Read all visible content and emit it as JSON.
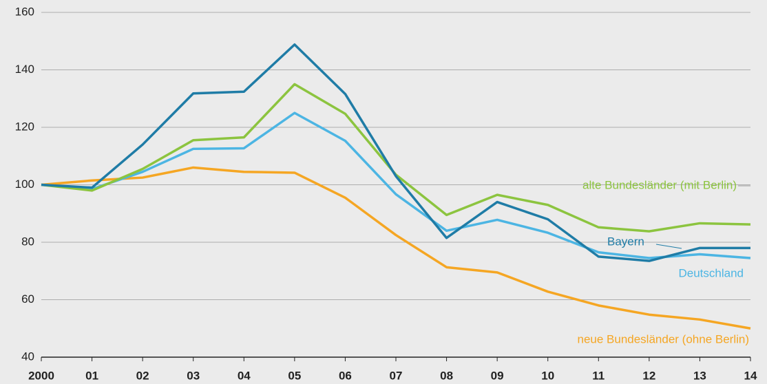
{
  "chart_data": {
    "type": "line",
    "categories": [
      "2000",
      "01",
      "02",
      "03",
      "04",
      "05",
      "06",
      "07",
      "08",
      "09",
      "10",
      "11",
      "12",
      "13",
      "14"
    ],
    "series": [
      {
        "name": "neue Bundesländer (ohne Berlin)",
        "color": "#f5a623",
        "values": [
          100,
          101.5,
          102.5,
          106,
          104.5,
          104.2,
          95.5,
          82.5,
          71.3,
          69.5,
          62.8,
          58,
          54.8,
          53.1,
          50
        ]
      },
      {
        "name": "Deutschland",
        "color": "#4cb5e3",
        "values": [
          100,
          98.5,
          104.5,
          112.5,
          112.7,
          125,
          115.3,
          96.7,
          84,
          87.8,
          83.3,
          76.5,
          74.5,
          75.8,
          74.5
        ]
      },
      {
        "name": "alte Bundesländer (mit Berlin)",
        "color": "#8cc43f",
        "values": [
          100,
          98,
          105.5,
          115.5,
          116.5,
          135,
          124.7,
          103.5,
          89.5,
          96.5,
          93,
          85.2,
          83.8,
          86.6,
          86.2
        ]
      },
      {
        "name": "Bayern",
        "color": "#1f7ca6",
        "values": [
          100,
          99,
          114,
          131.8,
          132.4,
          148.8,
          131.6,
          103,
          81.5,
          94,
          88,
          75,
          73.5,
          78,
          78
        ]
      }
    ],
    "ylim": [
      40,
      160
    ],
    "yticks": [
      40,
      60,
      80,
      100,
      120,
      140,
      160
    ],
    "grid": true
  }
}
